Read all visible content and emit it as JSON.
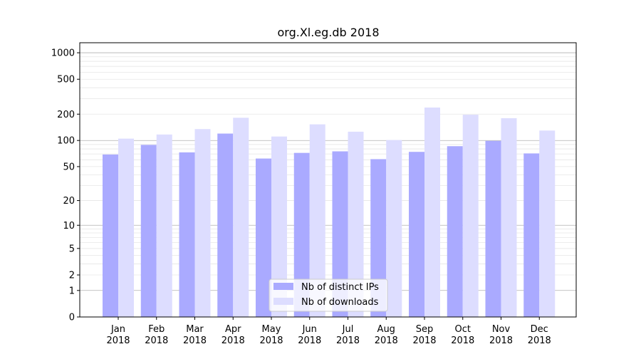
{
  "chart_data": {
    "type": "bar",
    "title": "org.Xl.eg.db 2018",
    "categories": [
      "Jan\n2018",
      "Feb\n2018",
      "Mar\n2018",
      "Apr\n2018",
      "May\n2018",
      "Jun\n2018",
      "Jul\n2018",
      "Aug\n2018",
      "Sep\n2018",
      "Oct\n2018",
      "Nov\n2018",
      "Dec\n2018"
    ],
    "series": [
      {
        "name": "Nb of distinct IPs",
        "color": "#aaaaff",
        "values": [
          69,
          89,
          73,
          120,
          62,
          72,
          75,
          61,
          74,
          86,
          99,
          71
        ]
      },
      {
        "name": "Nb of downloads",
        "color": "#ddddff",
        "values": [
          105,
          117,
          135,
          182,
          111,
          153,
          126,
          101,
          238,
          197,
          180,
          130
        ]
      }
    ],
    "yscale": "log1p",
    "yticks": [
      0,
      1,
      2,
      5,
      10,
      20,
      50,
      100,
      200,
      500,
      1000
    ],
    "ylim": [
      0,
      1300
    ],
    "grid": true,
    "legend": "bottom-center"
  }
}
